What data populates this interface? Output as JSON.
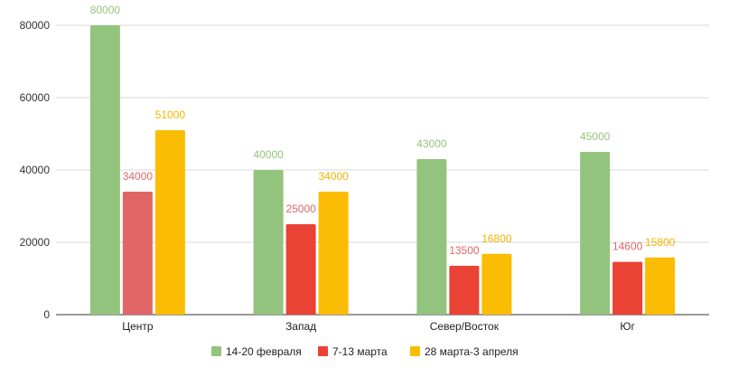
{
  "chart_data": {
    "type": "bar",
    "categories": [
      "Центр",
      "Запад",
      "Север/Восток",
      "Юг"
    ],
    "series": [
      {
        "name": "14-20 февраля",
        "color": "#93c47d",
        "label_color": "#93c47d",
        "values": [
          80000,
          40000,
          43000,
          45000
        ]
      },
      {
        "name": "7-13 марта",
        "color": "#ea4335",
        "label_color": "#e06666",
        "values": [
          34000,
          25000,
          13500,
          14600
        ]
      },
      {
        "name": "28 марта-3 апреля",
        "color": "#fbbc04",
        "label_color": "#f1b400",
        "values": [
          51000,
          34000,
          16800,
          15800
        ]
      }
    ],
    "point_overrides": [
      {
        "series": 1,
        "category": 0,
        "color": "#e06666"
      }
    ],
    "ylim": [
      0,
      80000
    ],
    "yticks": [
      "0",
      "20000",
      "40000",
      "60000",
      "80000"
    ],
    "grid": true,
    "legend_position": "bottom"
  }
}
